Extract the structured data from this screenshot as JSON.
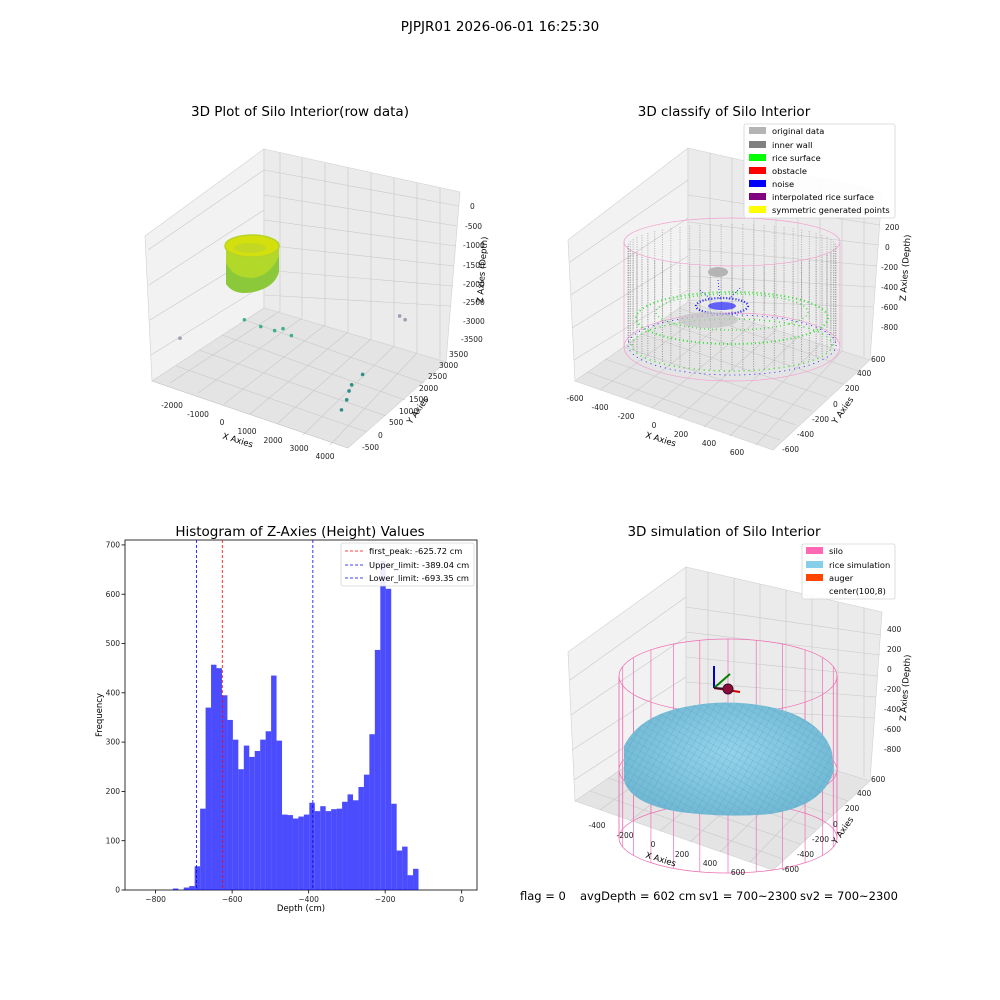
{
  "page_title": "PJPJR01 2026-06-01 16:25:30",
  "status_text": {
    "flag": "flag = 0",
    "avg_depth": "avgDepth = 602 cm",
    "sv1": "sv1 = 700~2300",
    "sv2": "sv2 = 700~2300"
  },
  "chart_data": [
    {
      "type": "scatter",
      "title": "3D Plot of Silo Interior(row data)",
      "xlabel": "X Axies",
      "ylabel": "Y Axies",
      "zlabel": "Z Axies (Depth)",
      "xlim": [
        -2500,
        4300
      ],
      "ylim": [
        -700,
        3600
      ],
      "zlim": [
        -3600,
        100
      ],
      "x_ticks": [
        "-2000",
        "-1000",
        "0",
        "1000",
        "2000",
        "3000",
        "4000"
      ],
      "y_ticks": [
        "-500",
        "0",
        "500",
        "1000",
        "1500",
        "2000",
        "2500",
        "3000",
        "3500"
      ],
      "z_ticks": [
        "0",
        "-500",
        "-1000",
        "-1500",
        "-2000",
        "-2500",
        "-3000",
        "-3500"
      ],
      "points": [
        {
          "x": -200,
          "y": 300,
          "z": -2100
        },
        {
          "x": 100,
          "y": 600,
          "z": -2300
        },
        {
          "x": 400,
          "y": 800,
          "z": -2400
        },
        {
          "x": 600,
          "y": 900,
          "z": -2350
        },
        {
          "x": 800,
          "y": 1000,
          "z": -2500
        },
        {
          "x": -1800,
          "y": -400,
          "z": -2600
        },
        {
          "x": 3200,
          "y": 2500,
          "z": -2100
        },
        {
          "x": 3300,
          "y": 2600,
          "z": -2200
        },
        {
          "x": 3000,
          "y": 1300,
          "z": -3000
        },
        {
          "x": 2800,
          "y": 1100,
          "z": -3200
        },
        {
          "x": 2800,
          "y": 1000,
          "z": -3300
        },
        {
          "x": 2900,
          "y": 800,
          "z": -3400
        },
        {
          "x": 2900,
          "y": 600,
          "z": -3550
        }
      ]
    },
    {
      "type": "scatter",
      "title": "3D classify of Silo Interior",
      "xlabel": "X Axies",
      "ylabel": "Y Axies",
      "zlabel": "Z Axies (Depth)",
      "xlim": [
        -650,
        700
      ],
      "ylim": [
        -650,
        700
      ],
      "zlim": [
        -900,
        250
      ],
      "x_ticks": [
        "-600",
        "-400",
        "-200",
        "0",
        "200",
        "400",
        "600"
      ],
      "y_ticks": [
        "-600",
        "-400",
        "-200",
        "0",
        "200",
        "400",
        "600"
      ],
      "z_ticks": [
        "200",
        "0",
        "-200",
        "-400",
        "-600",
        "-800"
      ],
      "legend_position": "top-right",
      "legend": [
        {
          "label": "original data",
          "color": "#b4b4b4"
        },
        {
          "label": "inner wall",
          "color": "#808080"
        },
        {
          "label": "rice surface",
          "color": "#00ff00"
        },
        {
          "label": "obstacle",
          "color": "#ff0000"
        },
        {
          "label": "noise",
          "color": "#0000ff"
        },
        {
          "label": "interpolated rice surface",
          "color": "#800080"
        },
        {
          "label": "symmetric generated points",
          "color": "#ffff00"
        }
      ]
    },
    {
      "type": "bar",
      "title": "Histogram of Z-Axies (Height) Values",
      "xlabel": "Depth (cm)",
      "ylabel": "Frequency",
      "xlim": [
        -880,
        40
      ],
      "ylim": [
        0,
        710
      ],
      "x_ticks": [
        -800,
        -600,
        -400,
        -200,
        0
      ],
      "y_ticks": [
        0,
        100,
        200,
        300,
        400,
        500,
        600,
        700
      ],
      "bar_color": "#0000ff",
      "bin_start": -755,
      "bin_width": 14.27,
      "values": [
        3,
        0,
        5,
        8,
        48,
        165,
        370,
        457,
        450,
        395,
        345,
        305,
        245,
        293,
        270,
        282,
        305,
        322,
        435,
        303,
        153,
        152,
        145,
        149,
        153,
        177,
        160,
        170,
        160,
        164,
        165,
        179,
        194,
        182,
        209,
        234,
        316,
        487,
        668,
        611,
        175,
        80,
        88,
        30,
        43
      ],
      "vlines": [
        {
          "label": "first_peak: -625.72 cm",
          "x": -625.72,
          "color": "#ff0000"
        },
        {
          "label": "Upper_limit: -389.04 cm",
          "x": -389.04,
          "color": "#0000ff"
        },
        {
          "label": "Lower_limit: -693.35 cm",
          "x": -693.35,
          "color": "#0000ff"
        }
      ],
      "legend_position": "top-right"
    },
    {
      "type": "scatter",
      "title": "3D simulation of Silo Interior",
      "xlabel": "X Axies",
      "ylabel": "Y Axies",
      "zlabel": "Z Axies (Depth)",
      "xlim": [
        -500,
        700
      ],
      "ylim": [
        -650,
        700
      ],
      "zlim": [
        -900,
        450
      ],
      "x_ticks": [
        "-400",
        "-200",
        "0",
        "200",
        "400",
        "600"
      ],
      "y_ticks": [
        "-600",
        "-400",
        "-200",
        "0",
        "200",
        "400",
        "600"
      ],
      "z_ticks": [
        "400",
        "200",
        "0",
        "-200",
        "-400",
        "-600",
        "-800"
      ],
      "legend_position": "top-right",
      "legend": [
        {
          "label": "silo",
          "color": "#ff69b4"
        },
        {
          "label": "rice simulation",
          "color": "#87ceeb"
        },
        {
          "label": "auger",
          "color": "#ff4500"
        },
        {
          "label": "center(100,8)",
          "color": ""
        }
      ]
    }
  ]
}
